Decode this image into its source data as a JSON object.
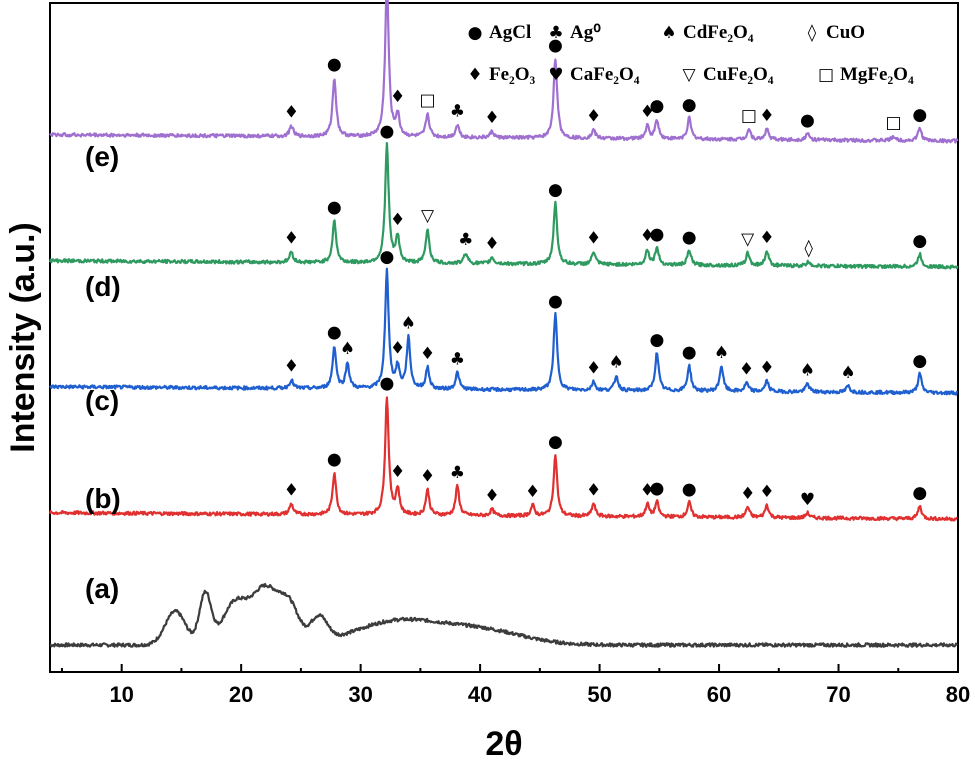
{
  "chart_data": {
    "type": "line",
    "xlabel": "2θ",
    "ylabel": "Intensity (a.u.)",
    "xlim": [
      4,
      80
    ],
    "x_ticks": [
      "10",
      "20",
      "30",
      "40",
      "50",
      "60",
      "70",
      "80"
    ],
    "grid": false,
    "legend_position": "top-right",
    "legend": [
      {
        "symbol": "●",
        "label": "AgCl"
      },
      {
        "symbol": "♣",
        "label": "Ag⁰"
      },
      {
        "symbol": "♠",
        "label": "CdFe₂O₄"
      },
      {
        "symbol": "◊",
        "label": "CuO"
      },
      {
        "symbol": "♦",
        "label": "Fe₂O₃"
      },
      {
        "symbol": "♥",
        "label": "CaFe₂O₄"
      },
      {
        "symbol": "▽",
        "label": "CuFe₂O₄"
      },
      {
        "symbol": "□",
        "label": "MgFe₂O₄"
      }
    ],
    "series": [
      {
        "name": "(a)",
        "color": "#3c3c3c",
        "baseline": 0.0,
        "broad_humps": [
          [
            14.5,
            0.8,
            1.2
          ],
          [
            17.0,
            1.2,
            0.7
          ],
          [
            19.5,
            1.0,
            1.5
          ],
          [
            22.0,
            1.3,
            1.5
          ],
          [
            24.0,
            0.9,
            1.2
          ],
          [
            26.5,
            0.6,
            1.0
          ],
          [
            33.0,
            0.55,
            5.0
          ],
          [
            40.0,
            0.35,
            5.0
          ]
        ],
        "peaks": [],
        "markers": []
      },
      {
        "name": "(b)",
        "color": "#e03030",
        "baseline": 3.0,
        "peaks": [
          [
            24.2,
            0.25
          ],
          [
            27.8,
            1.0
          ],
          [
            32.2,
            2.8
          ],
          [
            33.1,
            0.6
          ],
          [
            35.6,
            0.6
          ],
          [
            38.1,
            0.7
          ],
          [
            41.0,
            0.15
          ],
          [
            44.4,
            0.25
          ],
          [
            46.3,
            1.45
          ],
          [
            49.5,
            0.3
          ],
          [
            54.0,
            0.3
          ],
          [
            54.8,
            0.35
          ],
          [
            57.5,
            0.35
          ],
          [
            62.4,
            0.25
          ],
          [
            64.0,
            0.3
          ],
          [
            67.4,
            0.12
          ],
          [
            76.8,
            0.3
          ]
        ],
        "markers": [
          {
            "x": 24.2,
            "sym": "♦"
          },
          {
            "x": 27.8,
            "sym": "●"
          },
          {
            "x": 32.2,
            "sym": "●"
          },
          {
            "x": 33.1,
            "sym": "♦"
          },
          {
            "x": 35.6,
            "sym": "♦"
          },
          {
            "x": 38.1,
            "sym": "♣"
          },
          {
            "x": 41.0,
            "sym": "♦"
          },
          {
            "x": 44.4,
            "sym": "♦"
          },
          {
            "x": 46.3,
            "sym": "●"
          },
          {
            "x": 49.5,
            "sym": "♦"
          },
          {
            "x": 54.0,
            "sym": "♦"
          },
          {
            "x": 54.8,
            "sym": "●"
          },
          {
            "x": 57.5,
            "sym": "●"
          },
          {
            "x": 62.4,
            "sym": "♦"
          },
          {
            "x": 64.0,
            "sym": "♦"
          },
          {
            "x": 67.4,
            "sym": "♥"
          },
          {
            "x": 76.8,
            "sym": "●"
          }
        ]
      },
      {
        "name": "(c)",
        "color": "#1f5fd0",
        "baseline": 6.0,
        "peaks": [
          [
            24.2,
            0.2
          ],
          [
            27.8,
            1.0
          ],
          [
            28.9,
            0.6
          ],
          [
            32.2,
            2.8
          ],
          [
            33.1,
            0.5
          ],
          [
            34.0,
            1.2
          ],
          [
            35.6,
            0.5
          ],
          [
            38.1,
            0.4
          ],
          [
            46.3,
            1.8
          ],
          [
            49.5,
            0.2
          ],
          [
            51.4,
            0.35
          ],
          [
            54.8,
            0.9
          ],
          [
            57.5,
            0.6
          ],
          [
            60.2,
            0.6
          ],
          [
            62.3,
            0.2
          ],
          [
            64.0,
            0.25
          ],
          [
            67.4,
            0.2
          ],
          [
            70.8,
            0.15
          ],
          [
            76.8,
            0.45
          ]
        ],
        "markers": [
          {
            "x": 24.2,
            "sym": "♦"
          },
          {
            "x": 27.8,
            "sym": "●"
          },
          {
            "x": 28.9,
            "sym": "♠"
          },
          {
            "x": 32.2,
            "sym": "●"
          },
          {
            "x": 33.1,
            "sym": "♦"
          },
          {
            "x": 34.0,
            "sym": "♠"
          },
          {
            "x": 35.6,
            "sym": "♦"
          },
          {
            "x": 38.1,
            "sym": "♣"
          },
          {
            "x": 46.3,
            "sym": "●"
          },
          {
            "x": 49.5,
            "sym": "♦"
          },
          {
            "x": 51.4,
            "sym": "♠"
          },
          {
            "x": 54.8,
            "sym": "●"
          },
          {
            "x": 57.5,
            "sym": "●"
          },
          {
            "x": 60.2,
            "sym": "♠"
          },
          {
            "x": 62.3,
            "sym": "♦"
          },
          {
            "x": 64.0,
            "sym": "♦"
          },
          {
            "x": 67.4,
            "sym": "♠"
          },
          {
            "x": 70.8,
            "sym": "♠"
          },
          {
            "x": 76.8,
            "sym": "●"
          }
        ]
      },
      {
        "name": "(d)",
        "color": "#2f9a60",
        "baseline": 9.0,
        "peaks": [
          [
            24.2,
            0.25
          ],
          [
            27.8,
            1.0
          ],
          [
            32.2,
            2.8
          ],
          [
            33.1,
            0.6
          ],
          [
            35.6,
            0.8
          ],
          [
            38.8,
            0.25
          ],
          [
            41.0,
            0.15
          ],
          [
            46.3,
            1.45
          ],
          [
            49.5,
            0.3
          ],
          [
            54.0,
            0.35
          ],
          [
            54.8,
            0.4
          ],
          [
            57.5,
            0.35
          ],
          [
            62.4,
            0.3
          ],
          [
            64.0,
            0.35
          ],
          [
            67.5,
            0.1
          ],
          [
            76.8,
            0.3
          ]
        ],
        "markers": [
          {
            "x": 24.2,
            "sym": "♦"
          },
          {
            "x": 27.8,
            "sym": "●"
          },
          {
            "x": 32.2,
            "sym": "●"
          },
          {
            "x": 33.1,
            "sym": "♦"
          },
          {
            "x": 35.6,
            "sym": "▽"
          },
          {
            "x": 38.8,
            "sym": "♣"
          },
          {
            "x": 41.0,
            "sym": "♦"
          },
          {
            "x": 46.3,
            "sym": "●"
          },
          {
            "x": 49.5,
            "sym": "♦"
          },
          {
            "x": 54.0,
            "sym": "♦"
          },
          {
            "x": 54.8,
            "sym": "●"
          },
          {
            "x": 57.5,
            "sym": "●"
          },
          {
            "x": 62.4,
            "sym": "▽"
          },
          {
            "x": 64.0,
            "sym": "♦"
          },
          {
            "x": 67.5,
            "sym": "◊"
          },
          {
            "x": 76.8,
            "sym": "●"
          }
        ]
      },
      {
        "name": "(e)",
        "color": "#a070d0",
        "baseline": 12.0,
        "peaks": [
          [
            24.2,
            0.25
          ],
          [
            27.8,
            1.4
          ],
          [
            32.2,
            3.7
          ],
          [
            33.1,
            0.5
          ],
          [
            35.6,
            0.55
          ],
          [
            38.1,
            0.3
          ],
          [
            41.0,
            0.15
          ],
          [
            46.3,
            1.9
          ],
          [
            49.5,
            0.2
          ],
          [
            54.0,
            0.3
          ],
          [
            54.8,
            0.45
          ],
          [
            57.5,
            0.5
          ],
          [
            62.5,
            0.25
          ],
          [
            64.0,
            0.25
          ],
          [
            67.4,
            0.15
          ],
          [
            74.6,
            0.1
          ],
          [
            76.8,
            0.3
          ]
        ],
        "markers": [
          {
            "x": 24.2,
            "sym": "♦"
          },
          {
            "x": 27.8,
            "sym": "●"
          },
          {
            "x": 32.2,
            "sym": "●"
          },
          {
            "x": 33.1,
            "sym": "♦"
          },
          {
            "x": 35.6,
            "sym": "□"
          },
          {
            "x": 38.1,
            "sym": "♣"
          },
          {
            "x": 41.0,
            "sym": "♦"
          },
          {
            "x": 46.3,
            "sym": "●"
          },
          {
            "x": 49.5,
            "sym": "♦"
          },
          {
            "x": 54.0,
            "sym": "♦"
          },
          {
            "x": 54.8,
            "sym": "●"
          },
          {
            "x": 57.5,
            "sym": "●"
          },
          {
            "x": 62.5,
            "sym": "□"
          },
          {
            "x": 64.0,
            "sym": "♦"
          },
          {
            "x": 67.4,
            "sym": "●"
          },
          {
            "x": 74.6,
            "sym": "□"
          },
          {
            "x": 76.8,
            "sym": "●"
          }
        ]
      }
    ]
  }
}
